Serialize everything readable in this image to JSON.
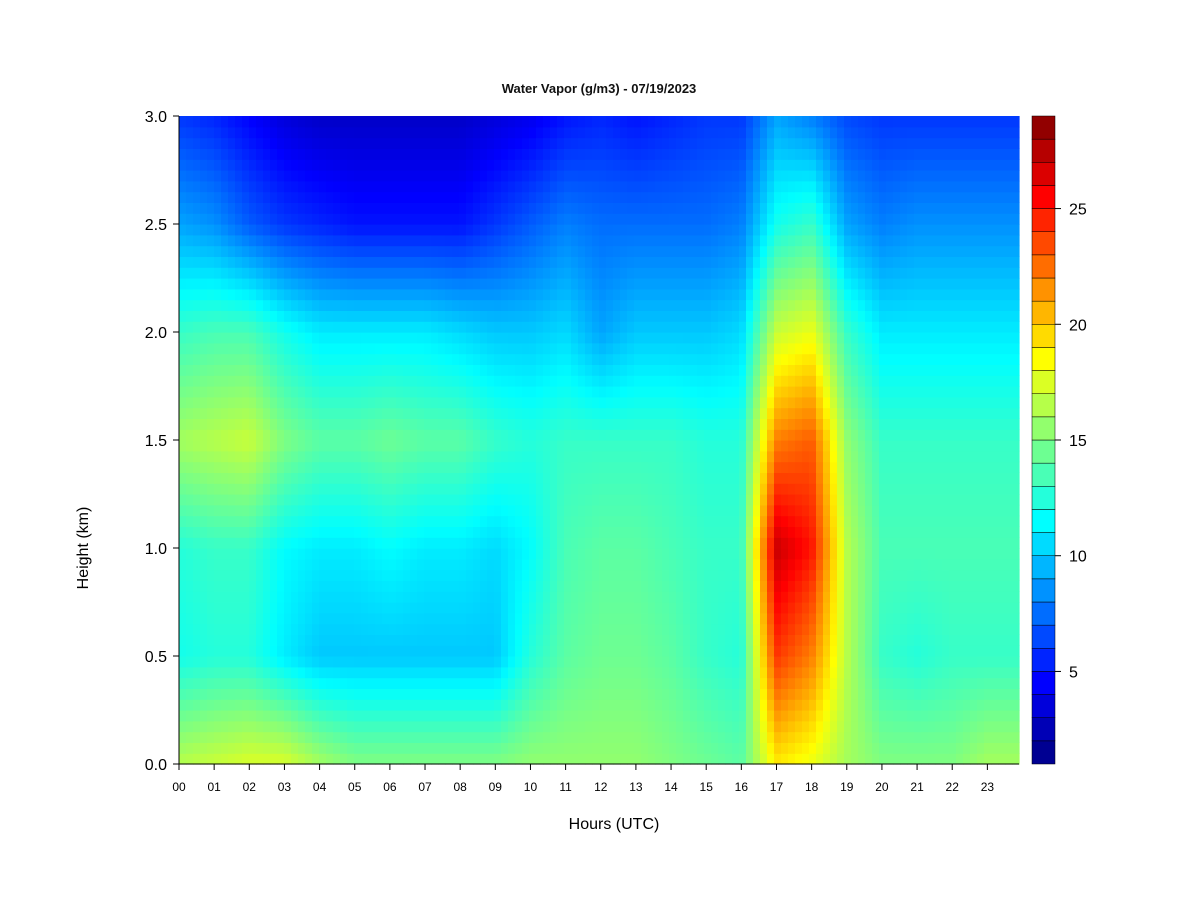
{
  "chart_data": {
    "type": "heatmap",
    "title": "Water Vapor (g/m3) - 07/19/2023",
    "xlabel": "Hours (UTC)",
    "ylabel": "Height (km)",
    "xlim": [
      0,
      23.9
    ],
    "ylim": [
      0,
      3.0
    ],
    "x_ticks": [
      "00",
      "01",
      "02",
      "03",
      "04",
      "05",
      "06",
      "07",
      "08",
      "09",
      "10",
      "11",
      "12",
      "13",
      "14",
      "15",
      "16",
      "17",
      "18",
      "19",
      "20",
      "21",
      "22",
      "23"
    ],
    "y_ticks": [
      "0.0",
      "0.5",
      "1.0",
      "1.5",
      "2.0",
      "2.5",
      "3.0"
    ],
    "colorbar": {
      "min": 1,
      "max": 29,
      "ticks": [
        "5",
        "10",
        "15",
        "20",
        "25"
      ],
      "colormap": "jet"
    },
    "hours": [
      0,
      1,
      2,
      3,
      4,
      5,
      6,
      7,
      8,
      9,
      10,
      11,
      12,
      13,
      14,
      15,
      16,
      17,
      18,
      19,
      20,
      21,
      22,
      23
    ],
    "heights_km": [
      0.0,
      0.5,
      1.0,
      1.5,
      2.0,
      2.5,
      3.0
    ],
    "values": [
      [
        16.5,
        12.0,
        12.5,
        16.0,
        13.0,
        9.0,
        6.0
      ],
      [
        17.0,
        12.5,
        13.0,
        16.5,
        13.5,
        8.5,
        5.5
      ],
      [
        17.5,
        12.5,
        13.0,
        17.0,
        13.5,
        7.0,
        4.5
      ],
      [
        17.5,
        11.0,
        11.5,
        15.0,
        12.0,
        6.0,
        3.5
      ],
      [
        16.0,
        10.0,
        11.0,
        14.0,
        11.0,
        5.5,
        3.0
      ],
      [
        15.0,
        10.0,
        11.0,
        14.0,
        11.0,
        5.0,
        3.0
      ],
      [
        15.0,
        10.0,
        11.5,
        14.5,
        11.0,
        5.0,
        3.0
      ],
      [
        15.0,
        10.0,
        11.0,
        14.0,
        11.0,
        5.0,
        3.0
      ],
      [
        15.0,
        10.0,
        11.0,
        14.0,
        10.5,
        5.0,
        3.0
      ],
      [
        15.0,
        10.0,
        10.5,
        13.0,
        10.0,
        6.0,
        3.5
      ],
      [
        15.5,
        12.5,
        11.5,
        12.5,
        10.0,
        7.0,
        4.0
      ],
      [
        15.5,
        14.0,
        13.5,
        13.0,
        10.5,
        8.0,
        5.0
      ],
      [
        15.5,
        14.5,
        14.0,
        13.0,
        9.0,
        7.5,
        5.5
      ],
      [
        15.5,
        14.5,
        14.0,
        13.0,
        10.0,
        7.5,
        5.0
      ],
      [
        15.0,
        14.0,
        13.5,
        13.0,
        10.0,
        7.5,
        5.5
      ],
      [
        14.5,
        13.0,
        13.0,
        12.5,
        10.0,
        7.5,
        6.0
      ],
      [
        14.0,
        12.5,
        13.0,
        12.5,
        10.5,
        8.0,
        6.0
      ],
      [
        19.0,
        24.0,
        27.0,
        22.0,
        17.0,
        12.0,
        9.0
      ],
      [
        18.0,
        22.0,
        25.0,
        23.0,
        18.0,
        13.0,
        8.0
      ],
      [
        16.0,
        16.5,
        16.5,
        15.5,
        13.0,
        9.0,
        6.5
      ],
      [
        15.0,
        13.0,
        13.5,
        13.0,
        11.0,
        8.0,
        6.0
      ],
      [
        15.0,
        12.5,
        13.5,
        13.0,
        11.0,
        8.5,
        6.0
      ],
      [
        15.0,
        13.0,
        13.5,
        13.0,
        11.0,
        8.5,
        6.0
      ],
      [
        16.0,
        13.0,
        13.5,
        13.0,
        11.0,
        8.5,
        6.0
      ]
    ]
  }
}
